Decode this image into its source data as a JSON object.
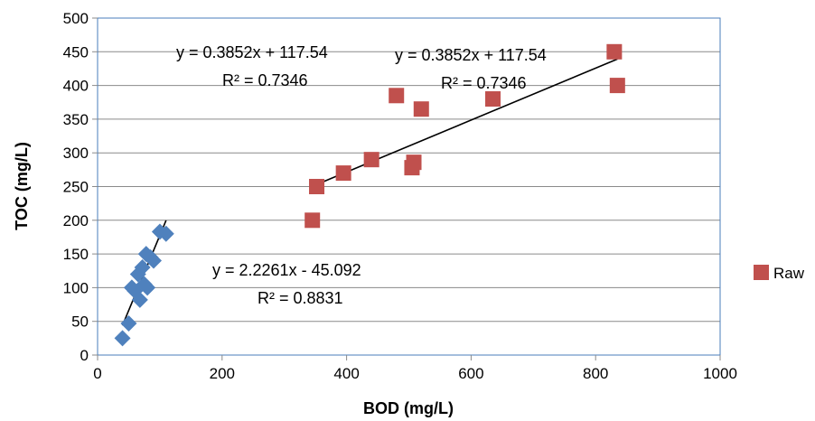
{
  "chart_data": {
    "type": "scatter",
    "xlabel": "BOD (mg/L)",
    "ylabel": "TOC (mg/L)",
    "xlim": [
      0,
      1000
    ],
    "ylim": [
      0,
      500
    ],
    "x_ticks": [
      "0",
      "200",
      "400",
      "600",
      "800",
      "1000"
    ],
    "y_ticks": [
      "0",
      "50",
      "100",
      "150",
      "200",
      "250",
      "300",
      "350",
      "400",
      "450",
      "500"
    ],
    "grid": "horizontal",
    "legend_position": "right",
    "plot_border_color": "#4a7ebb",
    "series": [
      {
        "name": "",
        "marker": "diamond",
        "color": "#4f81bd",
        "points": [
          {
            "x": 40,
            "y": 25
          },
          {
            "x": 50,
            "y": 47
          },
          {
            "x": 55,
            "y": 100
          },
          {
            "x": 60,
            "y": 95
          },
          {
            "x": 65,
            "y": 120
          },
          {
            "x": 68,
            "y": 82
          },
          {
            "x": 72,
            "y": 130
          },
          {
            "x": 75,
            "y": 105
          },
          {
            "x": 78,
            "y": 150
          },
          {
            "x": 80,
            "y": 100
          },
          {
            "x": 85,
            "y": 145
          },
          {
            "x": 90,
            "y": 140
          },
          {
            "x": 100,
            "y": 183
          },
          {
            "x": 110,
            "y": 180
          }
        ],
        "trendline": {
          "slope": 2.2261,
          "intercept": -45.092,
          "x_range": [
            40,
            110
          ]
        }
      },
      {
        "name": "Raw",
        "marker": "square",
        "color": "#c0504d",
        "points": [
          {
            "x": 345,
            "y": 200
          },
          {
            "x": 352,
            "y": 250
          },
          {
            "x": 395,
            "y": 270
          },
          {
            "x": 440,
            "y": 290
          },
          {
            "x": 480,
            "y": 385
          },
          {
            "x": 505,
            "y": 278
          },
          {
            "x": 508,
            "y": 286
          },
          {
            "x": 520,
            "y": 365
          },
          {
            "x": 635,
            "y": 380
          },
          {
            "x": 830,
            "y": 450
          },
          {
            "x": 835,
            "y": 400
          }
        ],
        "trendline": {
          "slope": 0.3852,
          "intercept": 117.54,
          "x_range": [
            350,
            835
          ]
        }
      }
    ],
    "annotations": [
      {
        "id": "eq-raw-1",
        "line1": "y = 0.3852x + 117.54",
        "line2": "R² = 0.7346"
      },
      {
        "id": "eq-raw-2",
        "line1": "y = 0.3852x + 117.54",
        "line2": "R² = 0.7346"
      },
      {
        "id": "eq-blue",
        "line1": "y = 2.2261x - 45.092",
        "line2": "R² = 0.8831"
      }
    ]
  }
}
